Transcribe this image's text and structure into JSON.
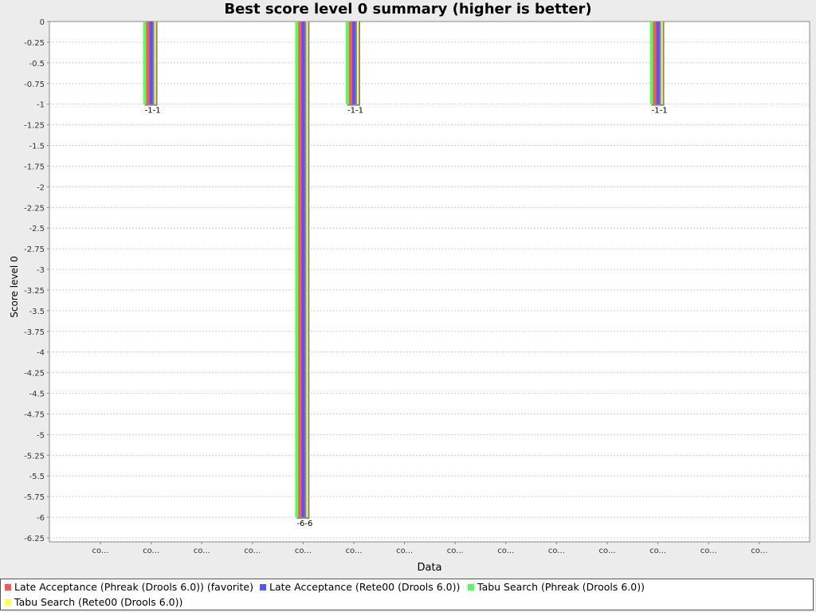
{
  "chart_data": {
    "type": "bar",
    "title": "Best score level 0 summary (higher is better)",
    "xlabel": "Data",
    "ylabel": "Score level 0",
    "ylim": [
      -6.25,
      0
    ],
    "y_ticks": [
      "0",
      "-0.25",
      "-0.5",
      "-0.75",
      "-1",
      "-1.25",
      "-1.5",
      "-1.75",
      "-2",
      "-2.25",
      "-2.5",
      "-2.75",
      "-3",
      "-3.25",
      "-3.5",
      "-3.75",
      "-4",
      "-4.25",
      "-4.5",
      "-4.75",
      "-5",
      "-5.25",
      "-5.5",
      "-5.75",
      "-6",
      "-6.25"
    ],
    "grid": true,
    "legend_position": "bottom",
    "categories": [
      "co...",
      "co...",
      "co...",
      "co...",
      "co...",
      "co...",
      "co...",
      "co...",
      "co...",
      "co...",
      "co...",
      "co...",
      "co...",
      "co..."
    ],
    "series": [
      {
        "name": "Late Acceptance (Phreak (Drools 6.0)) (favorite)",
        "color": "#ff5555",
        "values": [
          null,
          -1,
          null,
          null,
          -6,
          -1,
          null,
          null,
          null,
          null,
          null,
          -1,
          null,
          null
        ]
      },
      {
        "name": "Late Acceptance (Rete00 (Drools 6.0))",
        "color": "#5555ff",
        "values": [
          null,
          -1,
          null,
          null,
          -6,
          -1,
          null,
          null,
          null,
          null,
          null,
          -1,
          null,
          null
        ]
      },
      {
        "name": "Tabu Search (Phreak (Drools 6.0))",
        "color": "#55ff55",
        "values": [
          null,
          -1,
          null,
          null,
          -6,
          -1,
          null,
          null,
          null,
          null,
          null,
          -1,
          null,
          null
        ]
      },
      {
        "name": "Tabu Search (Rete00 (Drools 6.0))",
        "color": "#ffff55",
        "values": [
          null,
          -1,
          null,
          null,
          -6,
          -1,
          null,
          null,
          null,
          null,
          null,
          -1,
          null,
          null
        ]
      }
    ],
    "data_labels": [
      "",
      "-1-1",
      "",
      "",
      "-6-6",
      "-1-1",
      "",
      "",
      "",
      "",
      "",
      "-1-1",
      "",
      ""
    ]
  }
}
